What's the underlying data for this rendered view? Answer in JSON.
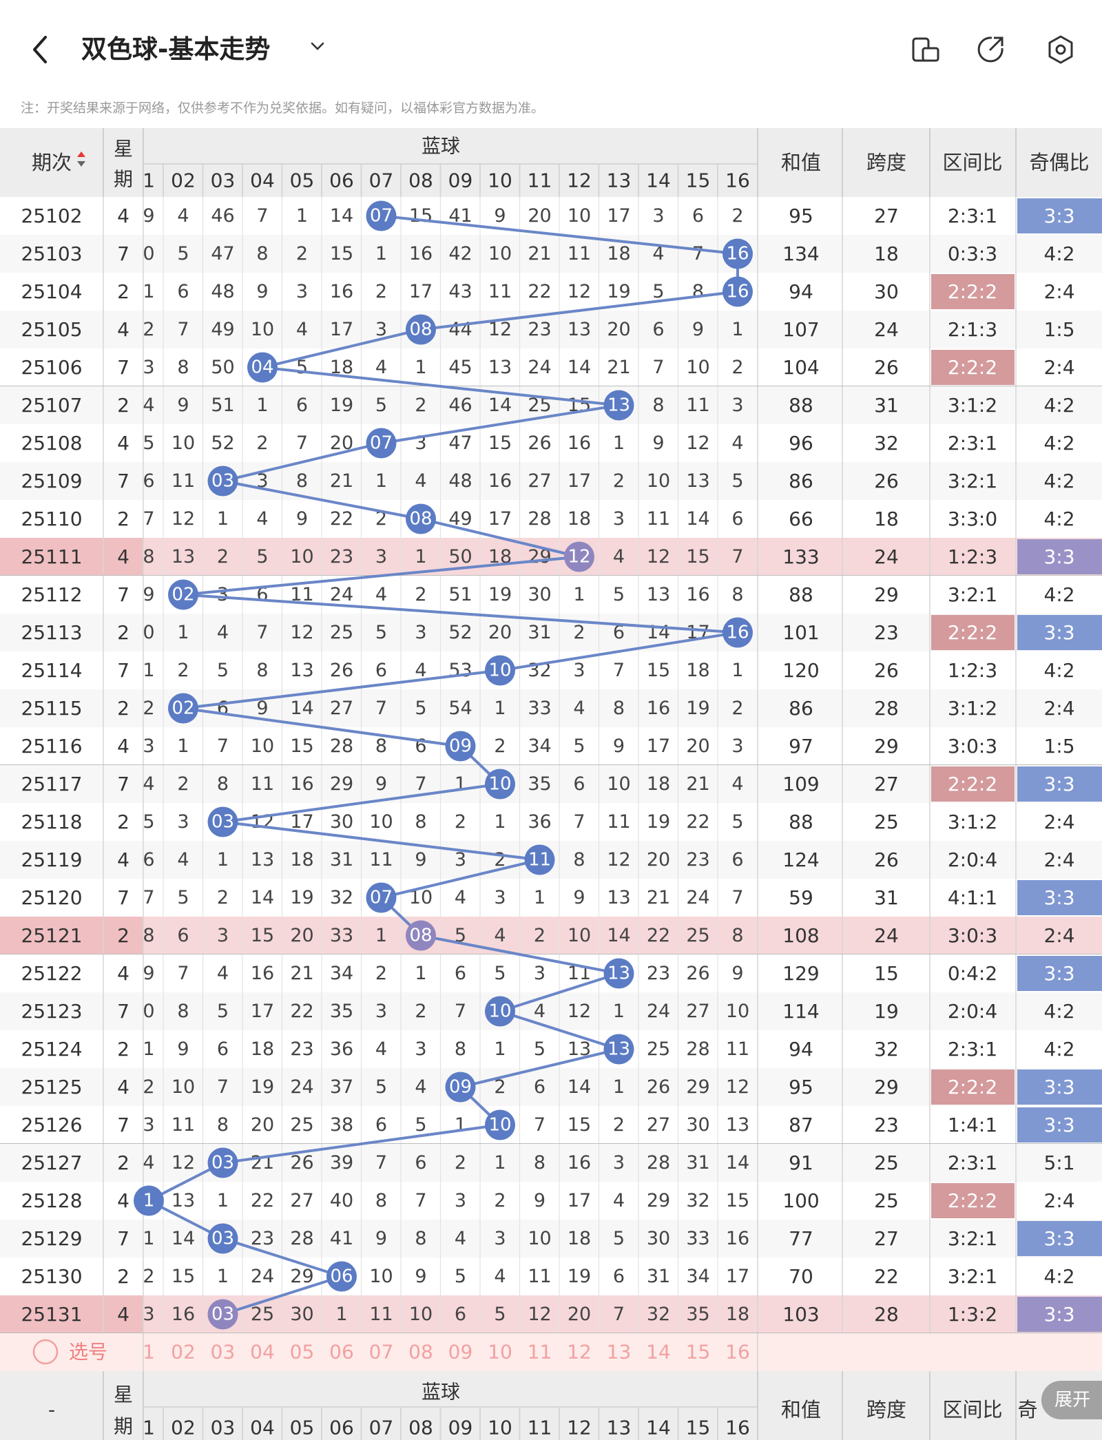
{
  "header": {
    "title": "双色球-基本走势",
    "note": "注：开奖结果来源于网络，仅供参考不作为兑奖依据。如有疑问，以福体彩官方数据为准。",
    "icons": [
      "back-icon",
      "chevron-down-icon",
      "layout-icon",
      "share-icon",
      "settings-icon"
    ]
  },
  "table": {
    "col_issue": "期次",
    "col_weekday_top": "星",
    "col_weekday_bottom": "期",
    "blue_group": "蓝球",
    "blue_numbers": [
      "1",
      "02",
      "03",
      "04",
      "05",
      "06",
      "07",
      "08",
      "09",
      "10",
      "11",
      "12",
      "13",
      "14",
      "15",
      "16"
    ],
    "col_sum": "和值",
    "col_span": "跨度",
    "col_zone": "区间比",
    "col_parity": "奇偶比",
    "rows": [
      {
        "issue": "25102",
        "wd": "4",
        "cells": [
          "9",
          "4",
          "46",
          "7",
          "1",
          "14",
          "07",
          "15",
          "41",
          "9",
          "20",
          "10",
          "17",
          "3",
          "6",
          "2"
        ],
        "hit": 7,
        "sum": "95",
        "span": "27",
        "zone": "2:3:1",
        "parity": "3:3"
      },
      {
        "issue": "25103",
        "wd": "7",
        "cells": [
          "0",
          "5",
          "47",
          "8",
          "2",
          "15",
          "1",
          "16",
          "42",
          "10",
          "21",
          "11",
          "18",
          "4",
          "7",
          "16"
        ],
        "hit": 16,
        "sum": "134",
        "span": "18",
        "zone": "0:3:3",
        "parity": "4:2"
      },
      {
        "issue": "25104",
        "wd": "2",
        "cells": [
          "1",
          "6",
          "48",
          "9",
          "3",
          "16",
          "2",
          "17",
          "43",
          "11",
          "22",
          "12",
          "19",
          "5",
          "8",
          "16"
        ],
        "hit": 16,
        "sum": "94",
        "span": "30",
        "zone": "2:2:2",
        "parity": "2:4"
      },
      {
        "issue": "25105",
        "wd": "4",
        "cells": [
          "2",
          "7",
          "49",
          "10",
          "4",
          "17",
          "3",
          "08",
          "44",
          "12",
          "23",
          "13",
          "20",
          "6",
          "9",
          "1"
        ],
        "hit": 8,
        "sum": "107",
        "span": "24",
        "zone": "2:1:3",
        "parity": "1:5"
      },
      {
        "issue": "25106",
        "wd": "7",
        "cells": [
          "3",
          "8",
          "50",
          "04",
          "5",
          "18",
          "4",
          "1",
          "45",
          "13",
          "24",
          "14",
          "21",
          "7",
          "10",
          "2"
        ],
        "hit": 4,
        "sum": "104",
        "span": "26",
        "zone": "2:2:2",
        "parity": "2:4"
      },
      {
        "issue": "25107",
        "wd": "2",
        "cells": [
          "4",
          "9",
          "51",
          "1",
          "6",
          "19",
          "5",
          "2",
          "46",
          "14",
          "25",
          "15",
          "13",
          "8",
          "11",
          "3"
        ],
        "hit": 13,
        "sum": "88",
        "span": "31",
        "zone": "3:1:2",
        "parity": "4:2"
      },
      {
        "issue": "25108",
        "wd": "4",
        "cells": [
          "5",
          "10",
          "52",
          "2",
          "7",
          "20",
          "07",
          "3",
          "47",
          "15",
          "26",
          "16",
          "1",
          "9",
          "12",
          "4"
        ],
        "hit": 7,
        "sum": "96",
        "span": "32",
        "zone": "2:3:1",
        "parity": "4:2"
      },
      {
        "issue": "25109",
        "wd": "7",
        "cells": [
          "6",
          "11",
          "03",
          "3",
          "8",
          "21",
          "1",
          "4",
          "48",
          "16",
          "27",
          "17",
          "2",
          "10",
          "13",
          "5"
        ],
        "hit": 3,
        "sum": "86",
        "span": "26",
        "zone": "3:2:1",
        "parity": "4:2"
      },
      {
        "issue": "25110",
        "wd": "2",
        "cells": [
          "7",
          "12",
          "1",
          "4",
          "9",
          "22",
          "2",
          "08",
          "49",
          "17",
          "28",
          "18",
          "3",
          "11",
          "14",
          "6"
        ],
        "hit": 8,
        "sum": "66",
        "span": "18",
        "zone": "3:3:0",
        "parity": "4:2"
      },
      {
        "issue": "25111",
        "wd": "4",
        "cells": [
          "8",
          "13",
          "2",
          "5",
          "10",
          "23",
          "3",
          "1",
          "50",
          "18",
          "29",
          "12",
          "4",
          "12",
          "15",
          "7"
        ],
        "hit": 12,
        "sum": "133",
        "span": "24",
        "zone": "1:2:3",
        "parity": "3:3",
        "pink": true
      },
      {
        "issue": "25112",
        "wd": "7",
        "cells": [
          "9",
          "02",
          "3",
          "6",
          "11",
          "24",
          "4",
          "2",
          "51",
          "19",
          "30",
          "1",
          "5",
          "13",
          "16",
          "8"
        ],
        "hit": 2,
        "sum": "88",
        "span": "29",
        "zone": "3:2:1",
        "parity": "4:2"
      },
      {
        "issue": "25113",
        "wd": "2",
        "cells": [
          "0",
          "1",
          "4",
          "7",
          "12",
          "25",
          "5",
          "3",
          "52",
          "20",
          "31",
          "2",
          "6",
          "14",
          "17",
          "16"
        ],
        "hit": 16,
        "sum": "101",
        "span": "23",
        "zone": "2:2:2",
        "parity": "3:3"
      },
      {
        "issue": "25114",
        "wd": "7",
        "cells": [
          "1",
          "2",
          "5",
          "8",
          "13",
          "26",
          "6",
          "4",
          "53",
          "10",
          "32",
          "3",
          "7",
          "15",
          "18",
          "1"
        ],
        "hit": 10,
        "sum": "120",
        "span": "26",
        "zone": "1:2:3",
        "parity": "4:2"
      },
      {
        "issue": "25115",
        "wd": "2",
        "cells": [
          "2",
          "02",
          "6",
          "9",
          "14",
          "27",
          "7",
          "5",
          "54",
          "1",
          "33",
          "4",
          "8",
          "16",
          "19",
          "2"
        ],
        "hit": 2,
        "sum": "86",
        "span": "28",
        "zone": "3:1:2",
        "parity": "2:4"
      },
      {
        "issue": "25116",
        "wd": "4",
        "cells": [
          "3",
          "1",
          "7",
          "10",
          "15",
          "28",
          "8",
          "6",
          "09",
          "2",
          "34",
          "5",
          "9",
          "17",
          "20",
          "3"
        ],
        "hit": 9,
        "sum": "97",
        "span": "29",
        "zone": "3:0:3",
        "parity": "1:5"
      },
      {
        "issue": "25117",
        "wd": "7",
        "cells": [
          "4",
          "2",
          "8",
          "11",
          "16",
          "29",
          "9",
          "7",
          "1",
          "10",
          "35",
          "6",
          "10",
          "18",
          "21",
          "4"
        ],
        "hit": 10,
        "sum": "109",
        "span": "27",
        "zone": "2:2:2",
        "parity": "3:3"
      },
      {
        "issue": "25118",
        "wd": "2",
        "cells": [
          "5",
          "3",
          "03",
          "12",
          "17",
          "30",
          "10",
          "8",
          "2",
          "1",
          "36",
          "7",
          "11",
          "19",
          "22",
          "5"
        ],
        "hit": 3,
        "sum": "88",
        "span": "25",
        "zone": "3:1:2",
        "parity": "2:4"
      },
      {
        "issue": "25119",
        "wd": "4",
        "cells": [
          "6",
          "4",
          "1",
          "13",
          "18",
          "31",
          "11",
          "9",
          "3",
          "2",
          "11",
          "8",
          "12",
          "20",
          "23",
          "6"
        ],
        "hit": 11,
        "sum": "124",
        "span": "26",
        "zone": "2:0:4",
        "parity": "2:4"
      },
      {
        "issue": "25120",
        "wd": "7",
        "cells": [
          "7",
          "5",
          "2",
          "14",
          "19",
          "32",
          "07",
          "10",
          "4",
          "3",
          "1",
          "9",
          "13",
          "21",
          "24",
          "7"
        ],
        "hit": 7,
        "sum": "59",
        "span": "31",
        "zone": "4:1:1",
        "parity": "3:3"
      },
      {
        "issue": "25121",
        "wd": "2",
        "cells": [
          "8",
          "6",
          "3",
          "15",
          "20",
          "33",
          "1",
          "08",
          "5",
          "4",
          "2",
          "10",
          "14",
          "22",
          "25",
          "8"
        ],
        "hit": 8,
        "sum": "108",
        "span": "24",
        "zone": "3:0:3",
        "parity": "2:4",
        "pink": true
      },
      {
        "issue": "25122",
        "wd": "4",
        "cells": [
          "9",
          "7",
          "4",
          "16",
          "21",
          "34",
          "2",
          "1",
          "6",
          "5",
          "3",
          "11",
          "13",
          "23",
          "26",
          "9"
        ],
        "hit": 13,
        "sum": "129",
        "span": "15",
        "zone": "0:4:2",
        "parity": "3:3"
      },
      {
        "issue": "25123",
        "wd": "7",
        "cells": [
          "0",
          "8",
          "5",
          "17",
          "22",
          "35",
          "3",
          "2",
          "7",
          "10",
          "4",
          "12",
          "1",
          "24",
          "27",
          "10"
        ],
        "hit": 10,
        "sum": "114",
        "span": "19",
        "zone": "2:0:4",
        "parity": "4:2"
      },
      {
        "issue": "25124",
        "wd": "2",
        "cells": [
          "1",
          "9",
          "6",
          "18",
          "23",
          "36",
          "4",
          "3",
          "8",
          "1",
          "5",
          "13",
          "13",
          "25",
          "28",
          "11"
        ],
        "hit": 13,
        "sum": "94",
        "span": "32",
        "zone": "2:3:1",
        "parity": "4:2"
      },
      {
        "issue": "25125",
        "wd": "4",
        "cells": [
          "2",
          "10",
          "7",
          "19",
          "24",
          "37",
          "5",
          "4",
          "09",
          "2",
          "6",
          "14",
          "1",
          "26",
          "29",
          "12"
        ],
        "hit": 9,
        "sum": "95",
        "span": "29",
        "zone": "2:2:2",
        "parity": "3:3"
      },
      {
        "issue": "25126",
        "wd": "7",
        "cells": [
          "3",
          "11",
          "8",
          "20",
          "25",
          "38",
          "6",
          "5",
          "1",
          "10",
          "7",
          "15",
          "2",
          "27",
          "30",
          "13"
        ],
        "hit": 10,
        "sum": "87",
        "span": "23",
        "zone": "1:4:1",
        "parity": "3:3"
      },
      {
        "issue": "25127",
        "wd": "2",
        "cells": [
          "4",
          "12",
          "03",
          "21",
          "26",
          "39",
          "7",
          "6",
          "2",
          "1",
          "8",
          "16",
          "3",
          "28",
          "31",
          "14"
        ],
        "hit": 3,
        "sum": "91",
        "span": "25",
        "zone": "2:3:1",
        "parity": "5:1"
      },
      {
        "issue": "25128",
        "wd": "4",
        "cells": [
          "1",
          "13",
          "1",
          "22",
          "27",
          "40",
          "8",
          "7",
          "3",
          "2",
          "9",
          "17",
          "4",
          "29",
          "32",
          "15"
        ],
        "hit": 1,
        "sum": "100",
        "span": "25",
        "zone": "2:2:2",
        "parity": "2:4"
      },
      {
        "issue": "25129",
        "wd": "7",
        "cells": [
          "1",
          "14",
          "03",
          "23",
          "28",
          "41",
          "9",
          "8",
          "4",
          "3",
          "10",
          "18",
          "5",
          "30",
          "33",
          "16"
        ],
        "hit": 3,
        "sum": "77",
        "span": "27",
        "zone": "3:2:1",
        "parity": "3:3"
      },
      {
        "issue": "25130",
        "wd": "2",
        "cells": [
          "2",
          "15",
          "1",
          "24",
          "29",
          "06",
          "10",
          "9",
          "5",
          "4",
          "11",
          "19",
          "6",
          "31",
          "34",
          "17"
        ],
        "hit": 6,
        "sum": "70",
        "span": "22",
        "zone": "3:2:1",
        "parity": "4:2"
      },
      {
        "issue": "25131",
        "wd": "4",
        "cells": [
          "3",
          "16",
          "03",
          "25",
          "30",
          "1",
          "11",
          "10",
          "6",
          "5",
          "12",
          "20",
          "7",
          "32",
          "35",
          "18"
        ],
        "hit": 3,
        "sum": "103",
        "span": "28",
        "zone": "1:3:2",
        "parity": "3:3",
        "pink": true
      }
    ],
    "zone_highlight": [
      "2:2:2"
    ],
    "parity_highlight": [
      "3:3"
    ],
    "select_label": "选号",
    "footer_issue": "-",
    "footer_parity_partial": "奇"
  },
  "expand_label": "展开",
  "colors": {
    "ball_blue": "#5b7bc4",
    "line_blue": "#6a86c8",
    "pink_row": "#f6d8da",
    "zone_red": "#d49a9c",
    "parity_blue": "#7f98d2",
    "parity_purple": "#9a92c6"
  }
}
